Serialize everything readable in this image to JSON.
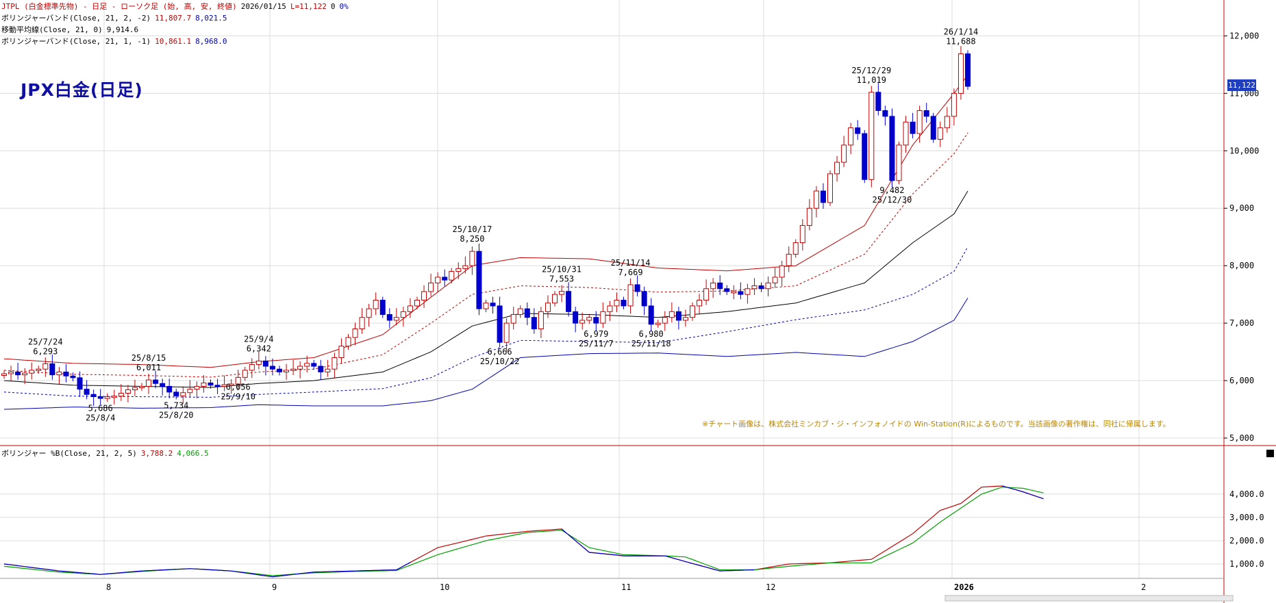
{
  "header": {
    "line1": {
      "text": "JTPL (白金標準先物) - 日足 - ローソク足 (始, 高, 安, 終値)",
      "date": "2026/01/15",
      "last": "L=11,122",
      "chg": "0",
      "pct": "0%"
    },
    "line2": {
      "label": "ボリンジャーバンド(Close, 21, 2, -2)",
      "v1": "11,807.7",
      "v2": "8,021.5"
    },
    "line3": {
      "label": "移動平均線(Close, 21, 0)",
      "v1": "9,914.6"
    },
    "line4": {
      "label": "ボリンジャーバンド(Close, 21, 1, -1)",
      "v1": "10,861.1",
      "v2": "8,968.0"
    }
  },
  "title": "JPX白金(日足)",
  "credit": "※チャート画像は、株式会社ミンカブ・ジ・インフォノイドの Win-Station(R)によるものです。当該画像の著作権は、同社に帰属します。",
  "price_tag": "11,122",
  "sub_header": {
    "label": "ボリンジャー %B(Close, 21, 2, 5)",
    "v1": "3,788.2",
    "v2": "4,066.5"
  },
  "colors": {
    "up": "#c00000",
    "down": "#0000cc",
    "ma": "#000000",
    "upper": "#c00000",
    "lower": "#0000b0",
    "sub_red": "#c00000",
    "sub_green": "#00a000",
    "sub_blue": "#0000cc"
  },
  "chart_data": [
    {
      "type": "candlestick",
      "title": "JPX白金(日足)",
      "ylim": [
        4900,
        12600
      ],
      "y_ticks": [
        "12,000",
        "11,000",
        "10,000",
        "9,000",
        "8,000",
        "7,000",
        "6,000",
        "5,000"
      ],
      "x_ticks": [
        "8",
        "9",
        "10",
        "11",
        "12",
        "2026",
        "2"
      ],
      "close_path": [
        6120,
        6150,
        6100,
        6130,
        6180,
        6200,
        6293,
        6100,
        6150,
        6080,
        6050,
        5850,
        5760,
        5720,
        5690,
        5720,
        5730,
        5780,
        5840,
        5880,
        5900,
        6011,
        5950,
        5900,
        5800,
        5734,
        5790,
        5850,
        5900,
        5960,
        5920,
        5900,
        5930,
        5940,
        6056,
        6180,
        6280,
        6342,
        6250,
        6200,
        6150,
        6180,
        6200,
        6250,
        6300,
        6250,
        6150,
        6200,
        6400,
        6600,
        6750,
        6900,
        7100,
        7250,
        7400,
        7150,
        7050,
        7100,
        7200,
        7300,
        7400,
        7550,
        7700,
        7800,
        7750,
        7900,
        7950,
        8000,
        8250,
        7250,
        7350,
        7300,
        6666,
        7000,
        7150,
        7250,
        7100,
        6900,
        7200,
        7350,
        7500,
        7553,
        7200,
        7000,
        7050,
        7100,
        7000,
        7200,
        7300,
        7400,
        7300,
        7669,
        7550,
        7300,
        6980,
        7000,
        7100,
        7200,
        7050,
        7100,
        7300,
        7400,
        7600,
        7700,
        7600,
        7550,
        7550,
        7500,
        7600,
        7650,
        7600,
        7700,
        7800,
        8000,
        8200,
        8400,
        8700,
        9000,
        9300,
        9100,
        9600,
        9800,
        10100,
        10400,
        10300,
        9500,
        11019,
        10700,
        10600,
        9482,
        10100,
        10500,
        10300,
        10700,
        10600,
        10200,
        10400,
        10600,
        11000,
        11688,
        11122
      ],
      "highs_lows_labels": [
        {
          "date": "25/7/24",
          "value": "6,293",
          "pos": "above",
          "i": 6
        },
        {
          "date": "25/8/4",
          "value": "5,686",
          "pos": "below",
          "i": 14
        },
        {
          "date": "25/8/15",
          "value": "6,011",
          "pos": "above",
          "i": 21
        },
        {
          "date": "25/8/20",
          "value": "5,734",
          "pos": "below",
          "i": 25
        },
        {
          "date": "25/9/4",
          "value": "6,342",
          "pos": "above",
          "i": 37
        },
        {
          "date": "25/9/10",
          "value": "6,056",
          "pos": "below",
          "i": 34
        },
        {
          "date": "25/10/17",
          "value": "8,250",
          "pos": "above",
          "i": 68
        },
        {
          "date": "25/10/22",
          "value": "6,666",
          "pos": "below",
          "i": 72
        },
        {
          "date": "25/10/31",
          "value": "7,553",
          "pos": "above",
          "i": 81
        },
        {
          "date": "25/11/7",
          "value": "6,979",
          "pos": "below",
          "i": 86
        },
        {
          "date": "25/11/14",
          "value": "7,669",
          "pos": "above",
          "i": 91
        },
        {
          "date": "25/11/18",
          "value": "6,980",
          "pos": "below",
          "i": 94
        },
        {
          "date": "25/12/29",
          "value": "11,019",
          "pos": "above",
          "i": 126
        },
        {
          "date": "25/12/30",
          "value": "9,482",
          "pos": "below",
          "i": 129
        },
        {
          "date": "26/1/14",
          "value": "11,688",
          "pos": "above",
          "i": 139
        }
      ],
      "series": [
        {
          "name": "移動平均線(Close, 21, 0)",
          "role": "ma",
          "points": [
            [
              0,
              6000
            ],
            [
              10,
              5920
            ],
            [
              20,
              5900
            ],
            [
              30,
              5880
            ],
            [
              37,
              5950
            ],
            [
              45,
              6000
            ],
            [
              55,
              6150
            ],
            [
              62,
              6500
            ],
            [
              68,
              6950
            ],
            [
              75,
              7170
            ],
            [
              85,
              7150
            ],
            [
              95,
              7100
            ],
            [
              105,
              7200
            ],
            [
              115,
              7350
            ],
            [
              125,
              7700
            ],
            [
              132,
              8400
            ],
            [
              138,
              8900
            ],
            [
              143,
              9900
            ]
          ]
        },
        {
          "name": "+2σ",
          "role": "upper",
          "points": [
            [
              0,
              6380
            ],
            [
              10,
              6300
            ],
            [
              20,
              6280
            ],
            [
              30,
              6230
            ],
            [
              37,
              6330
            ],
            [
              45,
              6400
            ],
            [
              55,
              6800
            ],
            [
              62,
              7450
            ],
            [
              68,
              8000
            ],
            [
              75,
              8140
            ],
            [
              85,
              8120
            ],
            [
              95,
              7960
            ],
            [
              105,
              7910
            ],
            [
              115,
              8000
            ],
            [
              125,
              8700
            ],
            [
              132,
              10100
            ],
            [
              138,
              11000
            ],
            [
              143,
              11800
            ]
          ]
        },
        {
          "name": "+1σ",
          "role": "upper-dash",
          "points": [
            [
              0,
              6180
            ],
            [
              10,
              6110
            ],
            [
              20,
              6090
            ],
            [
              30,
              6060
            ],
            [
              37,
              6150
            ],
            [
              45,
              6200
            ],
            [
              55,
              6450
            ],
            [
              62,
              7000
            ],
            [
              68,
              7500
            ],
            [
              75,
              7650
            ],
            [
              85,
              7620
            ],
            [
              95,
              7540
            ],
            [
              105,
              7560
            ],
            [
              115,
              7650
            ],
            [
              125,
              8200
            ],
            [
              132,
              9250
            ],
            [
              138,
              9950
            ],
            [
              143,
              10860
            ]
          ]
        },
        {
          "name": "-1σ",
          "role": "lower-dash",
          "points": [
            [
              0,
              5800
            ],
            [
              10,
              5730
            ],
            [
              20,
              5720
            ],
            [
              30,
              5710
            ],
            [
              37,
              5760
            ],
            [
              45,
              5800
            ],
            [
              55,
              5860
            ],
            [
              62,
              6050
            ],
            [
              68,
              6400
            ],
            [
              75,
              6700
            ],
            [
              85,
              6680
            ],
            [
              95,
              6660
            ],
            [
              105,
              6850
            ],
            [
              115,
              7060
            ],
            [
              125,
              7230
            ],
            [
              132,
              7500
            ],
            [
              138,
              7900
            ],
            [
              143,
              8970
            ]
          ]
        },
        {
          "name": "-2σ",
          "role": "lower",
          "points": [
            [
              0,
              5500
            ],
            [
              10,
              5540
            ],
            [
              20,
              5520
            ],
            [
              30,
              5530
            ],
            [
              37,
              5580
            ],
            [
              45,
              5560
            ],
            [
              55,
              5560
            ],
            [
              62,
              5650
            ],
            [
              68,
              5850
            ],
            [
              75,
              6400
            ],
            [
              85,
              6470
            ],
            [
              95,
              6480
            ],
            [
              105,
              6420
            ],
            [
              115,
              6490
            ],
            [
              125,
              6420
            ],
            [
              132,
              6680
            ],
            [
              138,
              7050
            ],
            [
              143,
              8020
            ]
          ]
        }
      ]
    },
    {
      "type": "line",
      "title": "ボリンジャー %B(Close, 21, 2, 5)",
      "ylim": [
        0,
        4800
      ],
      "y_ticks": [
        "4,000.0",
        "3,000.0",
        "2,000.0",
        "1,000.0"
      ],
      "series": [
        {
          "name": "3,788.2",
          "role": "sub_red",
          "points": [
            [
              0,
              1000
            ],
            [
              8,
              700
            ],
            [
              14,
              550
            ],
            [
              20,
              700
            ],
            [
              27,
              800
            ],
            [
              33,
              700
            ],
            [
              39,
              450
            ],
            [
              45,
              650
            ],
            [
              51,
              700
            ],
            [
              57,
              750
            ],
            [
              63,
              1700
            ],
            [
              70,
              2200
            ],
            [
              76,
              2400
            ],
            [
              81,
              2500
            ],
            [
              85,
              1500
            ],
            [
              90,
              1350
            ],
            [
              96,
              1350
            ],
            [
              99,
              1100
            ],
            [
              104,
              700
            ],
            [
              109,
              750
            ],
            [
              114,
              1000
            ],
            [
              120,
              1050
            ],
            [
              126,
              1200
            ],
            [
              132,
              2300
            ],
            [
              136,
              3300
            ],
            [
              139,
              3600
            ],
            [
              142,
              4300
            ],
            [
              145,
              4350
            ],
            [
              148,
              4100
            ],
            [
              151,
              3800
            ]
          ]
        },
        {
          "name": "4,066.5",
          "role": "sub_green",
          "points": [
            [
              0,
              900
            ],
            [
              8,
              650
            ],
            [
              14,
              550
            ],
            [
              20,
              680
            ],
            [
              27,
              800
            ],
            [
              33,
              700
            ],
            [
              39,
              500
            ],
            [
              45,
              620
            ],
            [
              51,
              680
            ],
            [
              57,
              720
            ],
            [
              63,
              1400
            ],
            [
              70,
              2000
            ],
            [
              76,
              2350
            ],
            [
              81,
              2450
            ],
            [
              85,
              1700
            ],
            [
              90,
              1400
            ],
            [
              96,
              1350
            ],
            [
              99,
              1300
            ],
            [
              104,
              750
            ],
            [
              109,
              750
            ],
            [
              114,
              900
            ],
            [
              120,
              1050
            ],
            [
              126,
              1050
            ],
            [
              132,
              1900
            ],
            [
              136,
              2800
            ],
            [
              139,
              3400
            ],
            [
              142,
              4000
            ],
            [
              145,
              4300
            ],
            [
              148,
              4250
            ],
            [
              151,
              4050
            ]
          ]
        }
      ]
    }
  ]
}
